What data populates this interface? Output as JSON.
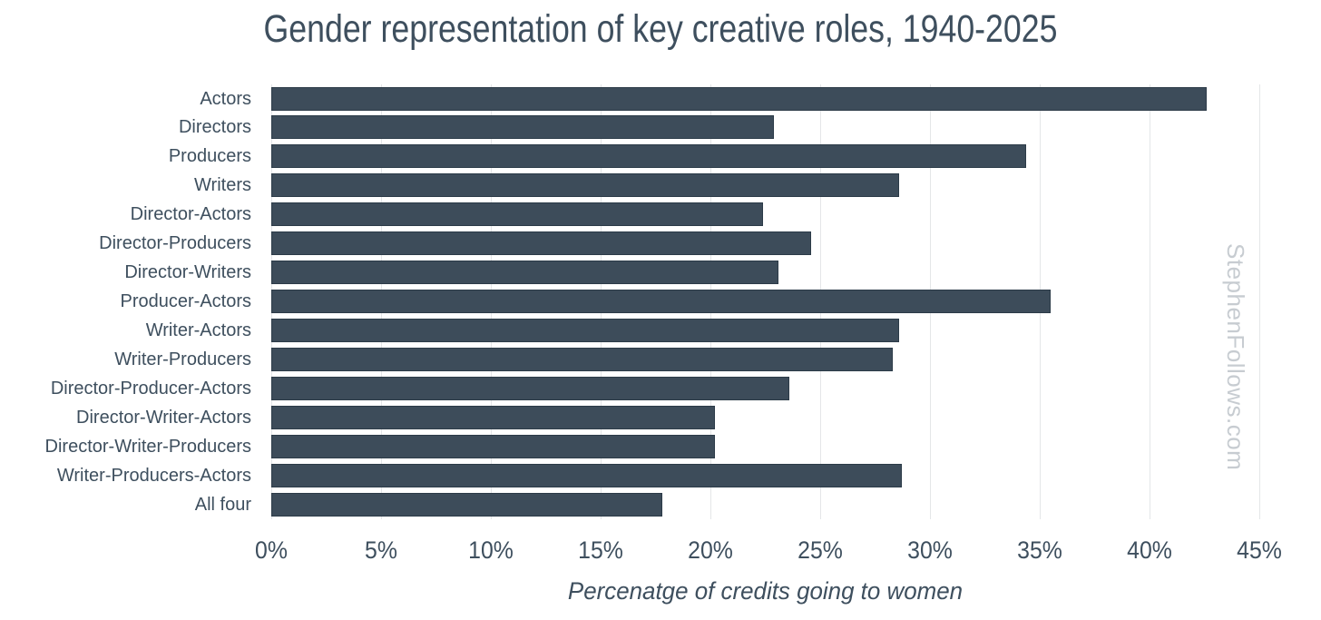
{
  "chart_data": {
    "type": "bar",
    "orientation": "horizontal",
    "title": "Gender representation of key creative roles, 1940-2025",
    "xlabel": "Percenatge of credits going to women",
    "categories": [
      "Actors",
      "Directors",
      "Producers",
      "Writers",
      "Director-Actors",
      "Director-Producers",
      "Director-Writers",
      "Producer-Actors",
      "Writer-Actors",
      "Writer-Producers",
      "Director-Producer-Actors",
      "Director-Writer-Actors",
      "Director-Writer-Producers",
      "Writer-Producers-Actors",
      "All four"
    ],
    "values": [
      42.6,
      22.9,
      34.4,
      28.6,
      22.4,
      24.6,
      23.1,
      35.5,
      28.6,
      28.3,
      23.6,
      20.2,
      20.2,
      28.7,
      17.8
    ],
    "xlim": [
      0,
      45
    ],
    "xtick_labels": [
      "0%",
      "5%",
      "10%",
      "15%",
      "20%",
      "25%",
      "30%",
      "35%",
      "40%",
      "45%"
    ],
    "xtick_values": [
      0,
      5,
      10,
      15,
      20,
      25,
      30,
      35,
      40,
      45
    ],
    "grid": true,
    "legend": "none",
    "colors": {
      "bar_fill": "#3d4c5a",
      "bar_border": "#2c3b48",
      "text": "#3e4f5e",
      "gridline": "#e4e6e8",
      "watermark": "#c7ccd1",
      "background": "#ffffff"
    }
  },
  "watermark": {
    "text": "StephenFollows.com"
  }
}
